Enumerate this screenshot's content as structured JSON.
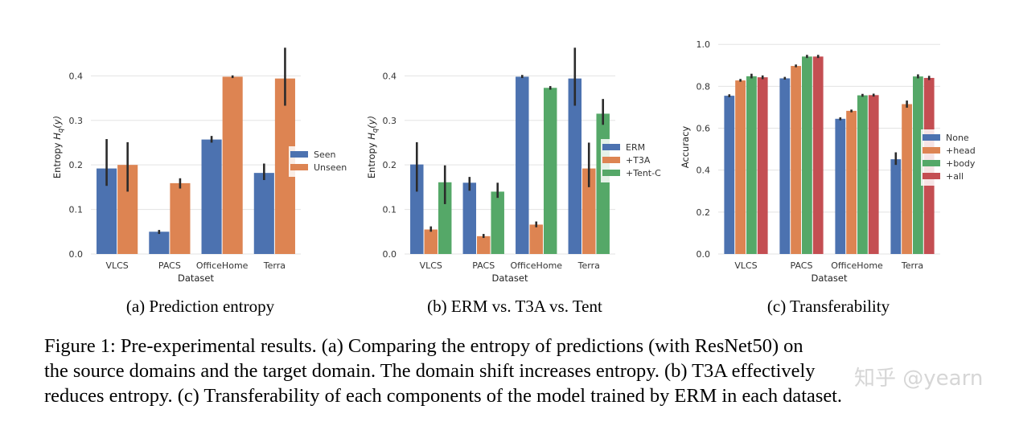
{
  "palette": {
    "blue": "#4c72b0",
    "orange": "#dd8452",
    "green": "#55a868",
    "red": "#c44e52",
    "grid": "#e3e3e3",
    "err": "#2b2b2b"
  },
  "chart_data": [
    {
      "id": "a",
      "type": "bar",
      "title": "",
      "xlabel": "Dataset",
      "ylabel": "Entropy H_q(y)",
      "ylabel_main": "Entropy ",
      "ylabel_h": "H",
      "ylabel_sub": "q",
      "ylabel_tail": "(y)",
      "ylim": [
        0,
        0.48
      ],
      "yticks": [
        0.0,
        0.1,
        0.2,
        0.3,
        0.4
      ],
      "ytick_labels": [
        "0.0",
        "0.1",
        "0.2",
        "0.3",
        "0.4"
      ],
      "grid": true,
      "legend_position": "center-right",
      "categories": [
        "VLCS",
        "PACS",
        "OfficeHome",
        "Terra"
      ],
      "series": [
        {
          "name": "Seen",
          "color": "blue",
          "values": [
            0.192,
            0.05,
            0.257,
            0.182
          ],
          "err_low": [
            0.153,
            0.045,
            0.25,
            0.166
          ],
          "err_high": [
            0.258,
            0.054,
            0.265,
            0.203
          ]
        },
        {
          "name": "Unseen",
          "color": "orange",
          "values": [
            0.2,
            0.159,
            0.398,
            0.394
          ],
          "err_low": [
            0.14,
            0.147,
            0.395,
            0.333
          ],
          "err_high": [
            0.251,
            0.17,
            0.401,
            0.463
          ]
        }
      ]
    },
    {
      "id": "b",
      "type": "bar",
      "title": "",
      "xlabel": "Dataset",
      "ylabel": "Entropy H_q(y)",
      "ylabel_main": "Entropy ",
      "ylabel_h": "H",
      "ylabel_sub": "q",
      "ylabel_tail": "(y)",
      "ylim": [
        0,
        0.48
      ],
      "yticks": [
        0.0,
        0.1,
        0.2,
        0.3,
        0.4
      ],
      "ytick_labels": [
        "0.0",
        "0.1",
        "0.2",
        "0.3",
        "0.4"
      ],
      "grid": true,
      "legend_position": "center-right",
      "categories": [
        "VLCS",
        "PACS",
        "OfficeHome",
        "Terra"
      ],
      "series": [
        {
          "name": "ERM",
          "color": "blue",
          "values": [
            0.201,
            0.16,
            0.398,
            0.394
          ],
          "err_low": [
            0.14,
            0.142,
            0.395,
            0.333
          ],
          "err_high": [
            0.251,
            0.173,
            0.402,
            0.463
          ]
        },
        {
          "name": "+T3A",
          "color": "orange",
          "values": [
            0.055,
            0.04,
            0.066,
            0.192
          ],
          "err_low": [
            0.05,
            0.036,
            0.06,
            0.15
          ],
          "err_high": [
            0.062,
            0.045,
            0.073,
            0.25
          ]
        },
        {
          "name": "+Tent-C",
          "color": "green",
          "values": [
            0.161,
            0.14,
            0.373,
            0.315
          ],
          "err_low": [
            0.112,
            0.126,
            0.369,
            0.29
          ],
          "err_high": [
            0.199,
            0.16,
            0.377,
            0.348
          ]
        }
      ]
    },
    {
      "id": "c",
      "type": "bar",
      "title": "",
      "xlabel": "Dataset",
      "ylabel": "Accuracy",
      "ylim": [
        0,
        1.02
      ],
      "yticks": [
        0.0,
        0.2,
        0.4,
        0.6,
        0.8,
        1.0
      ],
      "ytick_labels": [
        "0.0",
        "0.2",
        "0.4",
        "0.6",
        "0.8",
        "1.0"
      ],
      "grid": true,
      "legend_position": "center-right",
      "categories": [
        "VLCS",
        "PACS",
        "OfficeHome",
        "Terra"
      ],
      "series": [
        {
          "name": "None",
          "color": "blue",
          "values": [
            0.755,
            0.838,
            0.645,
            0.452
          ],
          "err_low": [
            0.748,
            0.832,
            0.638,
            0.425
          ],
          "err_high": [
            0.762,
            0.845,
            0.652,
            0.485
          ]
        },
        {
          "name": "+head",
          "color": "orange",
          "values": [
            0.828,
            0.897,
            0.683,
            0.715
          ],
          "err_low": [
            0.822,
            0.891,
            0.676,
            0.698
          ],
          "err_high": [
            0.835,
            0.904,
            0.689,
            0.732
          ]
        },
        {
          "name": "+body",
          "color": "green",
          "values": [
            0.848,
            0.942,
            0.757,
            0.847
          ],
          "err_low": [
            0.838,
            0.935,
            0.75,
            0.838
          ],
          "err_high": [
            0.86,
            0.95,
            0.764,
            0.857
          ]
        },
        {
          "name": "+all",
          "color": "red",
          "values": [
            0.843,
            0.942,
            0.758,
            0.84
          ],
          "err_low": [
            0.834,
            0.935,
            0.751,
            0.83
          ],
          "err_high": [
            0.852,
            0.95,
            0.765,
            0.85
          ]
        }
      ]
    }
  ],
  "subcaptions": {
    "a": "(a) Prediction entropy",
    "b": "(b) ERM vs. T3A vs. Tent",
    "c": "(c) Transferability"
  },
  "caption": {
    "line1": "Figure 1: Pre-experimental results. (a) Comparing the entropy of predictions (with ResNet50) on",
    "line2": "the source domains and the target domain. The domain shift increases entropy. (b) T3A effectively",
    "line3": "reduces entropy. (c) Transferability of each components of the model trained by ERM in each dataset."
  },
  "watermark": "知乎 @yearn"
}
